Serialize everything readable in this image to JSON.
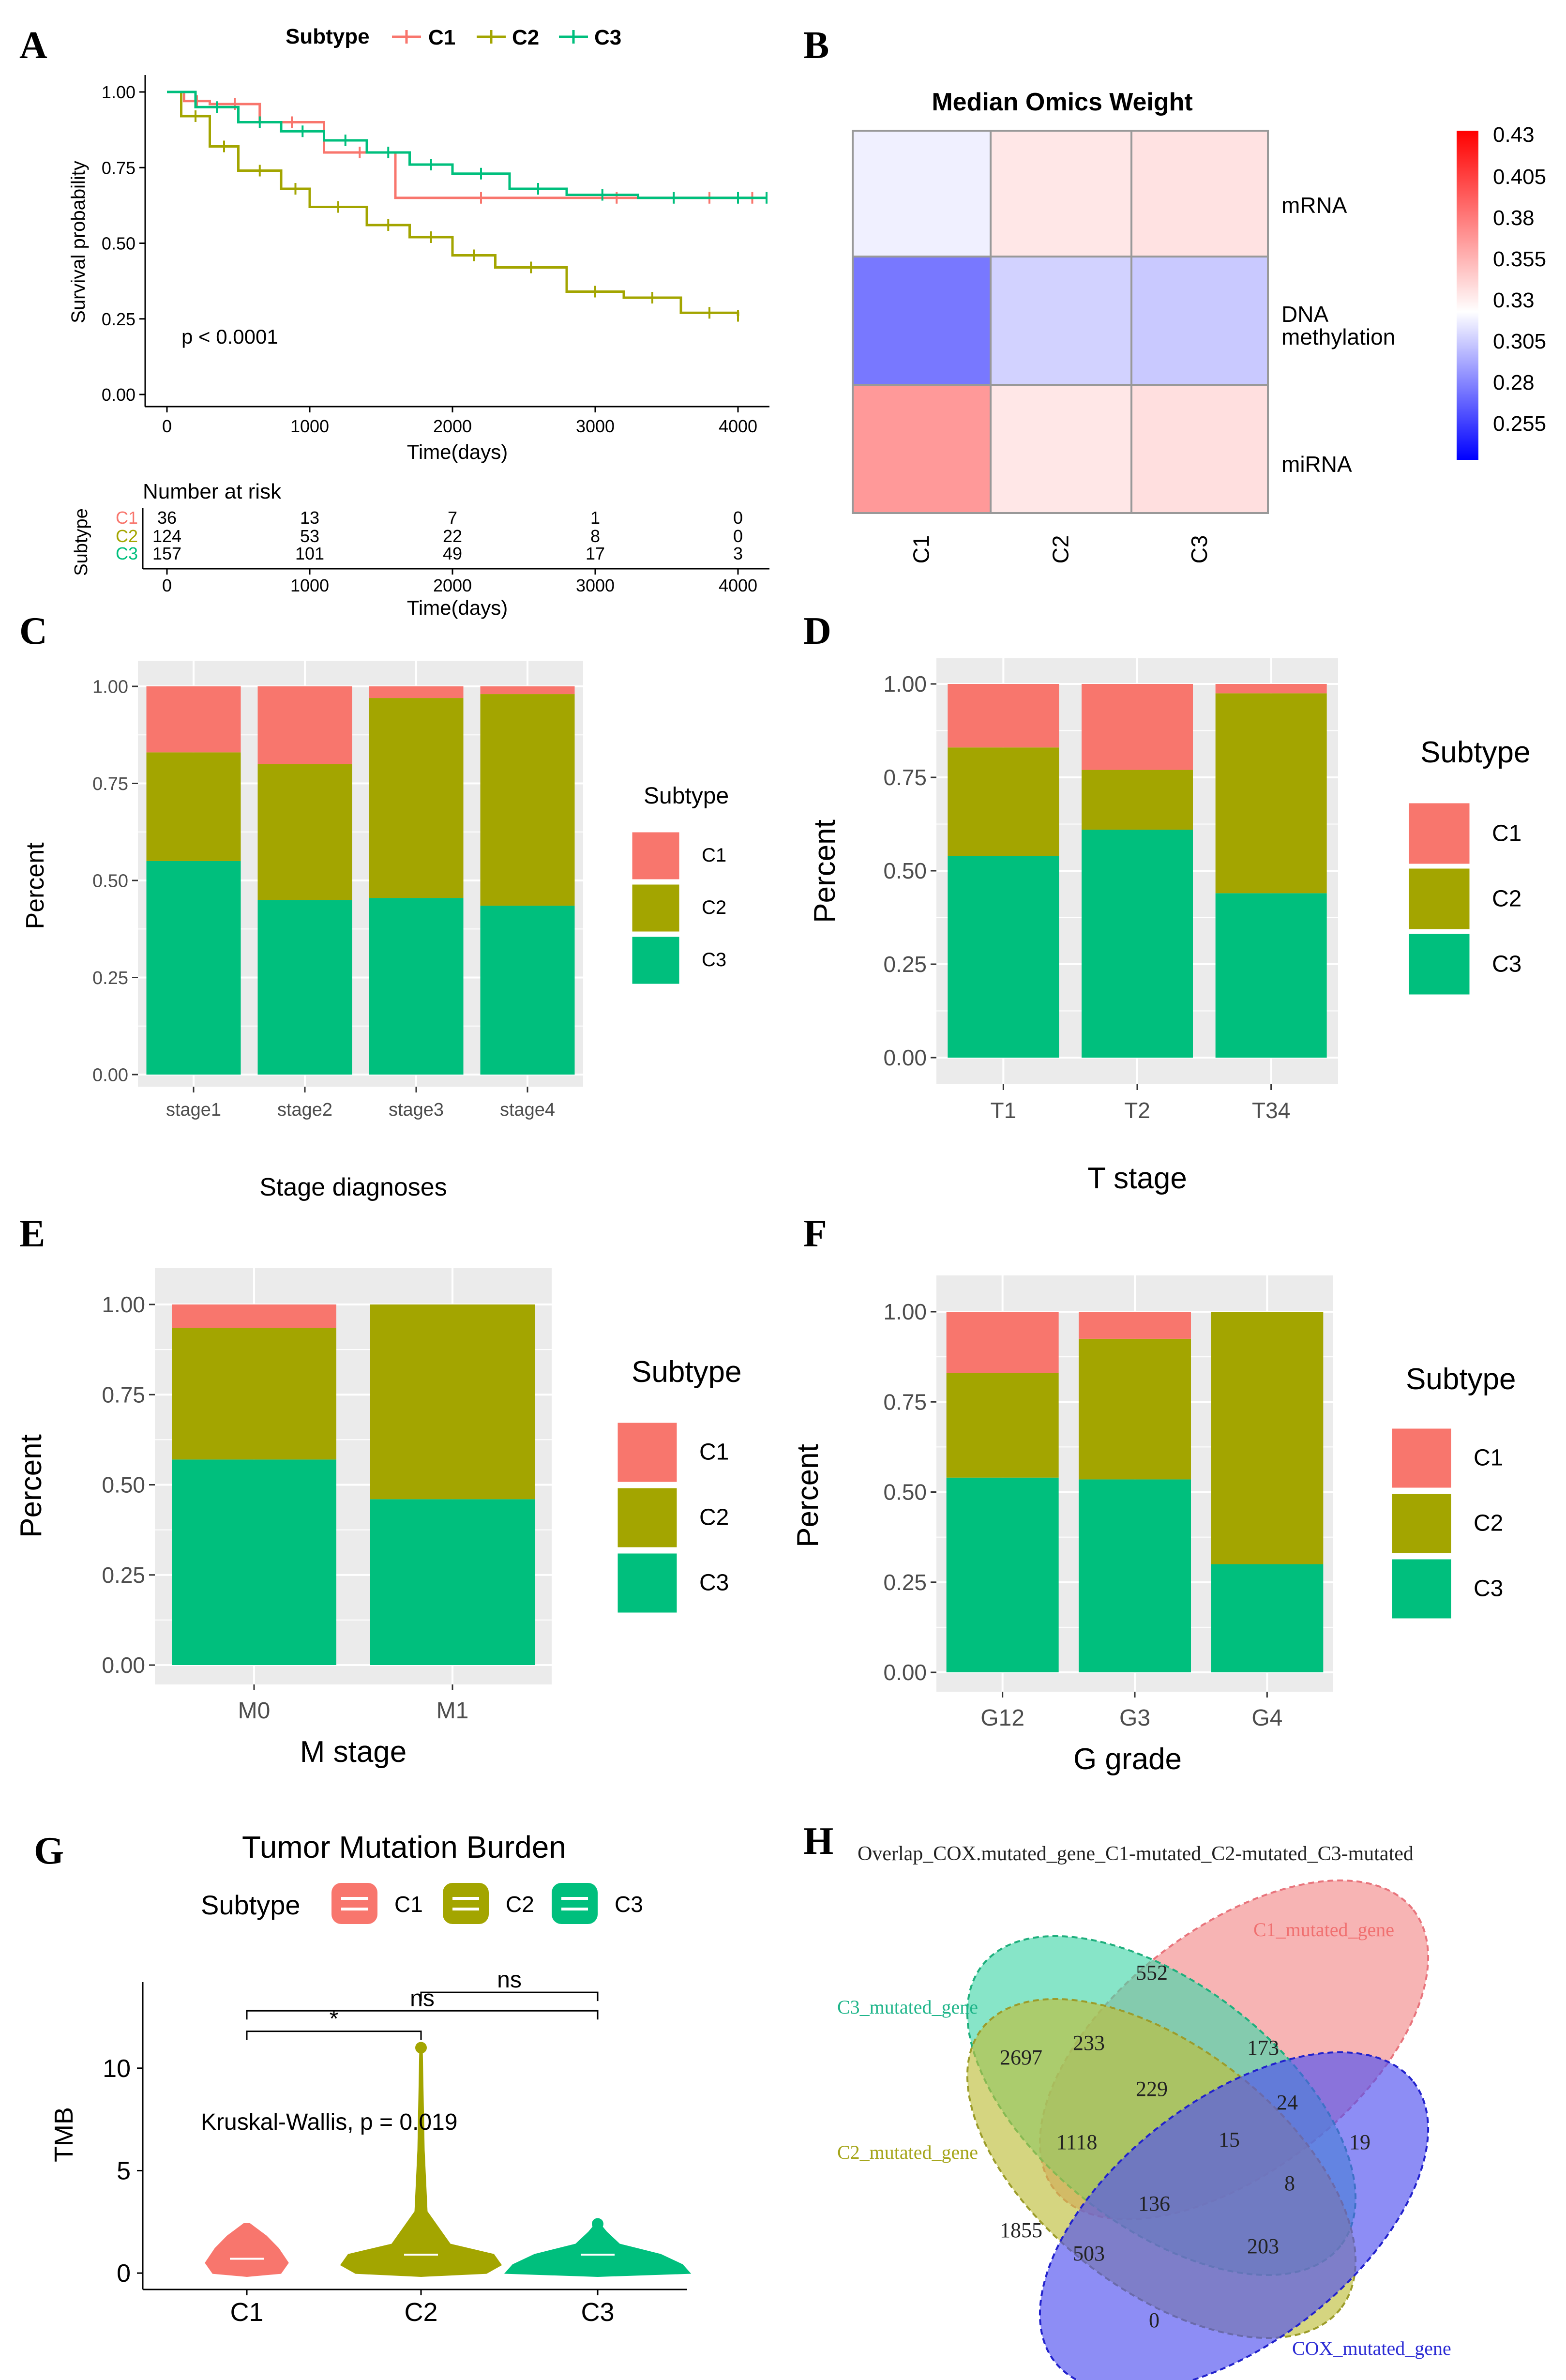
{
  "colors": {
    "C1": "#F8766D",
    "C2": "#A3A500",
    "C3": "#00BF7D",
    "panel": "#EBEBEB",
    "grid": "#FFFFFF"
  },
  "chart_data": [
    {
      "panel": "A",
      "type": "line",
      "title": "",
      "xlabel": "Time(days)",
      "ylabel": "Survival probability",
      "legend_title": "Subtype",
      "legend_labels": [
        "C1",
        "C2",
        "C3"
      ],
      "xlim": [
        0,
        4200
      ],
      "ylim": [
        0,
        1
      ],
      "x_ticks": [
        "0",
        "1000",
        "2000",
        "3000",
        "4000"
      ],
      "y_ticks": [
        "0.00",
        "0.25",
        "0.50",
        "0.75",
        "1.00"
      ],
      "annotation": "p < 0.0001",
      "series": [
        {
          "name": "C1",
          "x": [
            0,
            120,
            300,
            650,
            1100,
            1600,
            2800,
            3500,
            4100
          ],
          "y": [
            1.0,
            0.97,
            0.96,
            0.9,
            0.8,
            0.65,
            0.65,
            0.65,
            0.65
          ]
        },
        {
          "name": "C2",
          "x": [
            0,
            100,
            300,
            500,
            800,
            1000,
            1400,
            1700,
            2000,
            2300,
            2800,
            3200,
            3600,
            4000
          ],
          "y": [
            1.0,
            0.92,
            0.82,
            0.74,
            0.68,
            0.62,
            0.56,
            0.52,
            0.46,
            0.42,
            0.34,
            0.32,
            0.27,
            0.26
          ]
        },
        {
          "name": "C3",
          "x": [
            0,
            200,
            500,
            800,
            1100,
            1400,
            1700,
            2000,
            2400,
            2800,
            3300,
            3800,
            4200
          ],
          "y": [
            1.0,
            0.95,
            0.9,
            0.87,
            0.84,
            0.8,
            0.76,
            0.73,
            0.68,
            0.66,
            0.65,
            0.65,
            0.65
          ]
        }
      ],
      "risk_table": {
        "title": "Number at risk",
        "row_axis_label": "Subtype",
        "row_labels": [
          "C1",
          "C2",
          "C3"
        ],
        "times": [
          0,
          1000,
          2000,
          3000,
          4000
        ],
        "values": [
          [
            "36",
            "13",
            "7",
            "1",
            "0"
          ],
          [
            "124",
            "53",
            "22",
            "8",
            "0"
          ],
          [
            "157",
            "101",
            "49",
            "17",
            "3"
          ]
        ],
        "xlabel": "Time(days)",
        "x_ticks": [
          "0",
          "1000",
          "2000",
          "3000",
          "4000"
        ]
      }
    },
    {
      "panel": "B",
      "type": "heatmap",
      "title": "Median Omics Weight",
      "columns": [
        "C1",
        "C2",
        "C3"
      ],
      "rows": [
        "mRNA",
        "DNA methylation",
        "miRNA"
      ],
      "values": [
        [
          0.325,
          0.34,
          0.342
        ],
        [
          0.285,
          0.315,
          0.312
        ],
        [
          0.372,
          0.34,
          0.343
        ]
      ],
      "scale_ticks": [
        "0.43",
        "0.405",
        "0.38",
        "0.355",
        "0.33",
        "0.305",
        "0.28",
        "0.255"
      ],
      "scale_range": [
        0.245,
        0.435
      ]
    },
    {
      "panel": "C",
      "type": "bar",
      "stacked": true,
      "xlabel": "Stage diagnoses",
      "ylabel": "Percent",
      "categories": [
        "stage1",
        "stage2",
        "stage3",
        "stage4"
      ],
      "y_ticks": [
        "0.00",
        "0.25",
        "0.50",
        "0.75",
        "1.00"
      ],
      "legend_title": "Subtype",
      "legend_labels": [
        "C1",
        "C2",
        "C3"
      ],
      "series": [
        {
          "name": "C3",
          "values": [
            0.55,
            0.45,
            0.455,
            0.435
          ]
        },
        {
          "name": "C2",
          "values": [
            0.28,
            0.35,
            0.515,
            0.545
          ]
        },
        {
          "name": "C1",
          "values": [
            0.17,
            0.2,
            0.03,
            0.02
          ]
        }
      ]
    },
    {
      "panel": "D",
      "type": "bar",
      "stacked": true,
      "xlabel": "T stage",
      "ylabel": "Percent",
      "categories": [
        "T1",
        "T2",
        "T34"
      ],
      "y_ticks": [
        "0.00",
        "0.25",
        "0.50",
        "0.75",
        "1.00"
      ],
      "legend_title": "Subtype",
      "legend_labels": [
        "C1",
        "C2",
        "C3"
      ],
      "series": [
        {
          "name": "C3",
          "values": [
            0.54,
            0.61,
            0.44
          ]
        },
        {
          "name": "C2",
          "values": [
            0.29,
            0.16,
            0.535
          ]
        },
        {
          "name": "C1",
          "values": [
            0.17,
            0.23,
            0.025
          ]
        }
      ]
    },
    {
      "panel": "E",
      "type": "bar",
      "stacked": true,
      "xlabel": "M stage",
      "ylabel": "Percent",
      "categories": [
        "M0",
        "M1"
      ],
      "y_ticks": [
        "0.00",
        "0.25",
        "0.50",
        "0.75",
        "1.00"
      ],
      "legend_title": "Subtype",
      "legend_labels": [
        "C1",
        "C2",
        "C3"
      ],
      "series": [
        {
          "name": "C3",
          "values": [
            0.57,
            0.46
          ]
        },
        {
          "name": "C2",
          "values": [
            0.365,
            0.54
          ]
        },
        {
          "name": "C1",
          "values": [
            0.065,
            0.0
          ]
        }
      ]
    },
    {
      "panel": "F",
      "type": "bar",
      "stacked": true,
      "xlabel": "G grade",
      "ylabel": "Percent",
      "categories": [
        "G12",
        "G3",
        "G4"
      ],
      "y_ticks": [
        "0.00",
        "0.25",
        "0.50",
        "0.75",
        "1.00"
      ],
      "legend_title": "Subtype",
      "legend_labels": [
        "C1",
        "C2",
        "C3"
      ],
      "series": [
        {
          "name": "C3",
          "values": [
            0.54,
            0.535,
            0.3
          ]
        },
        {
          "name": "C2",
          "values": [
            0.29,
            0.39,
            0.7
          ]
        },
        {
          "name": "C1",
          "values": [
            0.17,
            0.075,
            0.0
          ]
        }
      ]
    },
    {
      "panel": "G",
      "type": "violin",
      "title": "Tumor Mutation Burden",
      "ylabel": "TMB",
      "categories": [
        "C1",
        "C2",
        "C3"
      ],
      "ylim": [
        -0.8,
        14.2
      ],
      "y_ticks": [
        0,
        5,
        10
      ],
      "legend_title": "Subtype",
      "legend_labels": [
        "C1",
        "C2",
        "C3"
      ],
      "medians": [
        0.7,
        0.9,
        0.9
      ],
      "maxima": [
        2.4,
        11.0,
        2.4
      ],
      "annotation": "Kruskal-Wallis, p = 0.019",
      "comparisons": [
        {
          "pair": [
            "C1",
            "C2"
          ],
          "label": "*",
          "y": 11.8
        },
        {
          "pair": [
            "C1",
            "C3"
          ],
          "label": "ns",
          "y": 12.8
        },
        {
          "pair": [
            "C2",
            "C3"
          ],
          "label": "ns",
          "y": 13.7
        }
      ]
    },
    {
      "panel": "H",
      "type": "venn",
      "title": "Overlap_COX.mutated_gene_C1-mutated_C2-mutated_C3-mutated",
      "set_labels": [
        "C1_mutated_gene",
        "C3_mutated_gene",
        "C2_mutated_gene",
        "COX_mutated_gene"
      ],
      "counts": [
        "552",
        "173",
        "19",
        "233",
        "24",
        "2697",
        "229",
        "15",
        "8",
        "1118",
        "136",
        "203",
        "1855",
        "503",
        "0"
      ]
    }
  ],
  "panel_labels": [
    "A",
    "B",
    "C",
    "D",
    "E",
    "F",
    "G",
    "H"
  ]
}
